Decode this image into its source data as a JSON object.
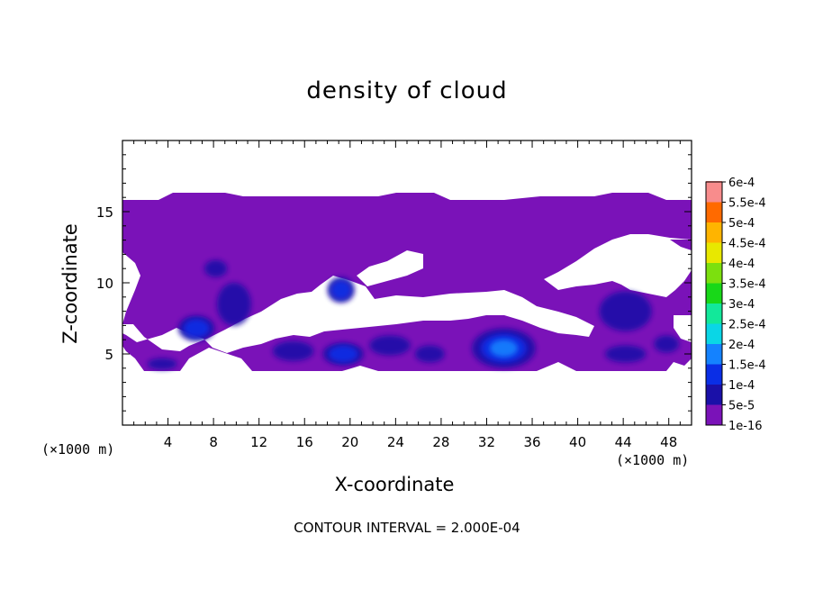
{
  "chart_data": {
    "type": "heatmap",
    "title": "density of cloud",
    "xlabel": "X-coordinate",
    "ylabel": "Z-coordinate",
    "x_unit_label": "(×1000 m)",
    "footnote": "CONTOUR INTERVAL = 2.000E-04",
    "xlim": [
      0,
      50
    ],
    "ylim": [
      0,
      20
    ],
    "x_ticks": [
      4,
      8,
      12,
      16,
      20,
      24,
      28,
      32,
      36,
      40,
      44,
      48
    ],
    "y_ticks": [
      5,
      10,
      15
    ],
    "colorbar": {
      "levels": [
        "1e-16",
        "5e-5",
        "1e-4",
        "1.5e-4",
        "2e-4",
        "2.5e-4",
        "3e-4",
        "3.5e-4",
        "4e-4",
        "4.5e-4",
        "5e-4",
        "5.5e-4",
        "6e-4"
      ],
      "colors": [
        "#7a12b8",
        "#1a10a8",
        "#0a2ee6",
        "#1482ff",
        "#0ad6e6",
        "#12e89a",
        "#18d818",
        "#7ce00e",
        "#e8e800",
        "#ffb400",
        "#ff6a00",
        "#ff2a18",
        "#f88c8c"
      ]
    },
    "cloud_region": {
      "base_color": "#7a12b8",
      "x_extent": [
        0,
        50
      ],
      "z_extent": [
        4,
        16.2
      ]
    },
    "density_cells": [
      {
        "x": 3.5,
        "z": 4.3,
        "level": 1,
        "rx": 1.3,
        "rz": 0.4
      },
      {
        "x": 6.5,
        "z": 6.8,
        "level": 2,
        "rx": 1.6,
        "rz": 0.9
      },
      {
        "x": 9.8,
        "z": 8.5,
        "level": 1,
        "rx": 1.5,
        "rz": 1.5
      },
      {
        "x": 8.2,
        "z": 11.0,
        "level": 1,
        "rx": 1.0,
        "rz": 0.6
      },
      {
        "x": 19.2,
        "z": 9.5,
        "level": 2,
        "rx": 1.2,
        "rz": 0.9
      },
      {
        "x": 19.4,
        "z": 5.0,
        "level": 2,
        "rx": 1.8,
        "rz": 0.8
      },
      {
        "x": 15.0,
        "z": 5.2,
        "level": 1,
        "rx": 1.8,
        "rz": 0.7
      },
      {
        "x": 23.5,
        "z": 5.6,
        "level": 1,
        "rx": 1.8,
        "rz": 0.7
      },
      {
        "x": 27.0,
        "z": 5.0,
        "level": 1,
        "rx": 1.3,
        "rz": 0.6
      },
      {
        "x": 33.5,
        "z": 5.4,
        "level": 3,
        "rx": 2.8,
        "rz": 1.4
      },
      {
        "x": 44.2,
        "z": 5.0,
        "level": 1,
        "rx": 1.8,
        "rz": 0.6
      },
      {
        "x": 44.2,
        "z": 8.0,
        "level": 1,
        "rx": 2.3,
        "rz": 1.4
      },
      {
        "x": 47.8,
        "z": 5.7,
        "level": 1,
        "rx": 1.1,
        "rz": 0.6
      }
    ]
  }
}
